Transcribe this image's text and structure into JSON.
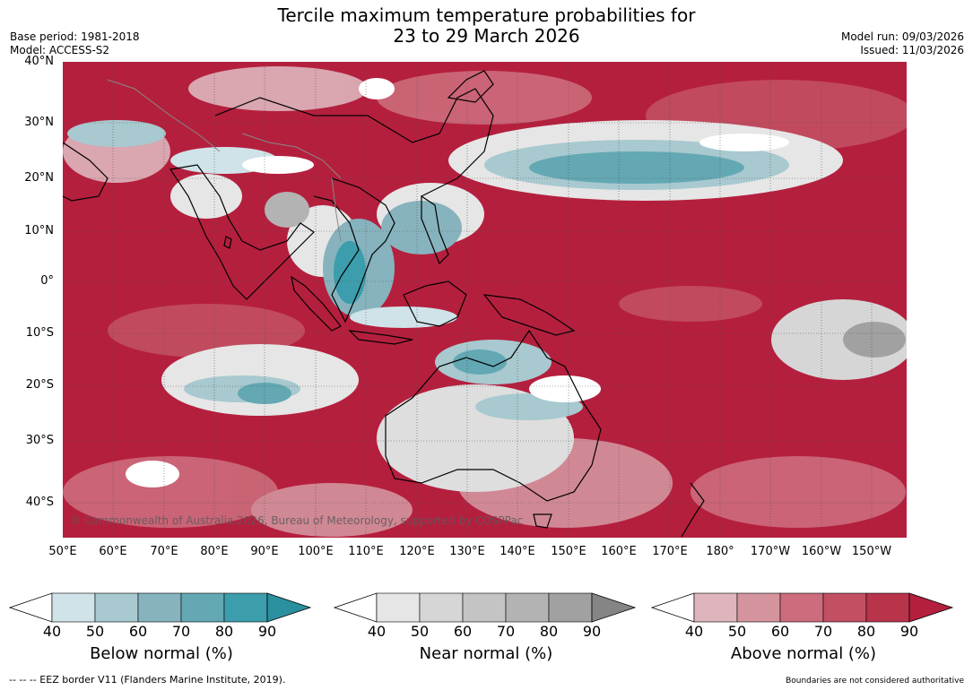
{
  "header": {
    "title_line1": "Tercile maximum temperature probabilities for",
    "title_line2": "23 to 29 March 2026",
    "base_period": "Base period: 1981-2018",
    "model": "Model: ACCESS-S2",
    "model_run": "Model run: 09/03/2026",
    "issued": "Issued: 11/03/2026"
  },
  "map": {
    "lat_labels": [
      "40°N",
      "30°N",
      "20°N",
      "10°N",
      "0°",
      "10°S",
      "20°S",
      "30°S",
      "40°S"
    ],
    "lon_labels": [
      "50°E",
      "60°E",
      "70°E",
      "80°E",
      "90°E",
      "100°E",
      "110°E",
      "120°E",
      "130°E",
      "140°E",
      "150°E",
      "160°E",
      "170°E",
      "180°",
      "170°W",
      "160°W",
      "150°W"
    ],
    "copyright": "© Commonwealth of Australia 2026, Bureau of Meteorology, supported by COSPPac",
    "colors": {
      "above_dominant": "#b51f3e",
      "coast": "#000000",
      "border": "#888888"
    }
  },
  "colorbars": [
    {
      "name": "below",
      "label": "Below normal (%)",
      "ticks": [
        "40",
        "50",
        "60",
        "70",
        "80",
        "90"
      ],
      "colors": [
        "#cfe3e8",
        "#a7c9cf",
        "#86b3bd",
        "#63a8b3",
        "#3c9dac",
        "#2a8f9f"
      ]
    },
    {
      "name": "near",
      "label": "Near normal (%)",
      "ticks": [
        "40",
        "50",
        "60",
        "70",
        "80",
        "90"
      ],
      "colors": [
        "#e6e6e6",
        "#d6d6d6",
        "#c4c4c4",
        "#b3b3b3",
        "#a1a1a1",
        "#858585"
      ]
    },
    {
      "name": "above",
      "label": "Above normal (%)",
      "ticks": [
        "40",
        "50",
        "60",
        "70",
        "80",
        "90"
      ],
      "colors": [
        "#deb5bd",
        "#d4949e",
        "#cc6c7c",
        "#c24f62",
        "#b8344b",
        "#b51f3e"
      ]
    }
  ],
  "footer": {
    "eez": "--  --  -- EEZ border V11 (Flanders Marine Institute, 2019).",
    "boundaries": "Boundaries are not considered authoritative"
  }
}
